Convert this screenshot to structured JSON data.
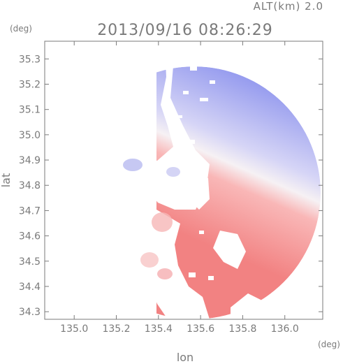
{
  "header": {
    "altitude_label": "ALT(km) 2.0",
    "timestamp": "2013/09/16 08:26:29"
  },
  "chart_data": {
    "type": "heatmap",
    "title": "2013/09/16 08:26:29",
    "subtitle": "ALT(km) 2.0",
    "xlabel": "lon",
    "ylabel": "lat",
    "x_unit": "(deg)",
    "y_unit": "(deg)",
    "xlim": [
      134.86,
      136.18
    ],
    "ylim": [
      34.27,
      35.37
    ],
    "x_ticks": [
      "135.0",
      "135.2",
      "135.4",
      "135.6",
      "135.8",
      "136.0"
    ],
    "y_ticks": [
      "34.3",
      "34.4",
      "34.5",
      "34.6",
      "34.7",
      "34.8",
      "34.9",
      "35.0",
      "35.1",
      "35.2",
      "35.3"
    ],
    "radar_center": [
      135.57,
      34.77
    ],
    "radar_range_deg": 0.6,
    "colors": {
      "approaching": "#8f94ec",
      "receding": "#f08a8a",
      "zero": "#f4f2f6",
      "axis": "#7a7a7a"
    },
    "grid": false,
    "legend": "none"
  }
}
